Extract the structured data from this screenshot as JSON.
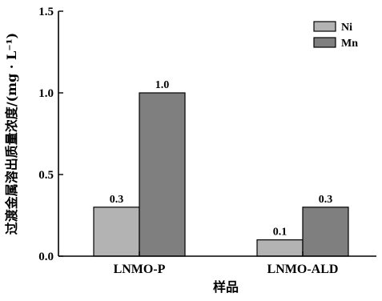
{
  "chart_data": {
    "type": "bar",
    "categories": [
      "LNMO-P",
      "LNMO-ALD"
    ],
    "series": [
      {
        "name": "Ni",
        "values": [
          0.3,
          0.1
        ],
        "color": "#b3b3b3"
      },
      {
        "name": "Mn",
        "values": [
          1.0,
          0.3
        ],
        "color": "#7f7f7f"
      }
    ],
    "value_labels": [
      [
        "0.3",
        "0.1"
      ],
      [
        "1.0",
        "0.3"
      ]
    ],
    "xlabel": "样品",
    "ylabel": "过渡金属溶出质量浓度/(mg · L⁻¹)",
    "ylim": [
      0,
      1.5
    ],
    "yticks": [
      0.0,
      0.5,
      1.0,
      1.5
    ],
    "ytick_labels": [
      "0.0",
      "0.5",
      "1.0",
      "1.5"
    ],
    "legend_position": "top-right",
    "grid": false
  }
}
